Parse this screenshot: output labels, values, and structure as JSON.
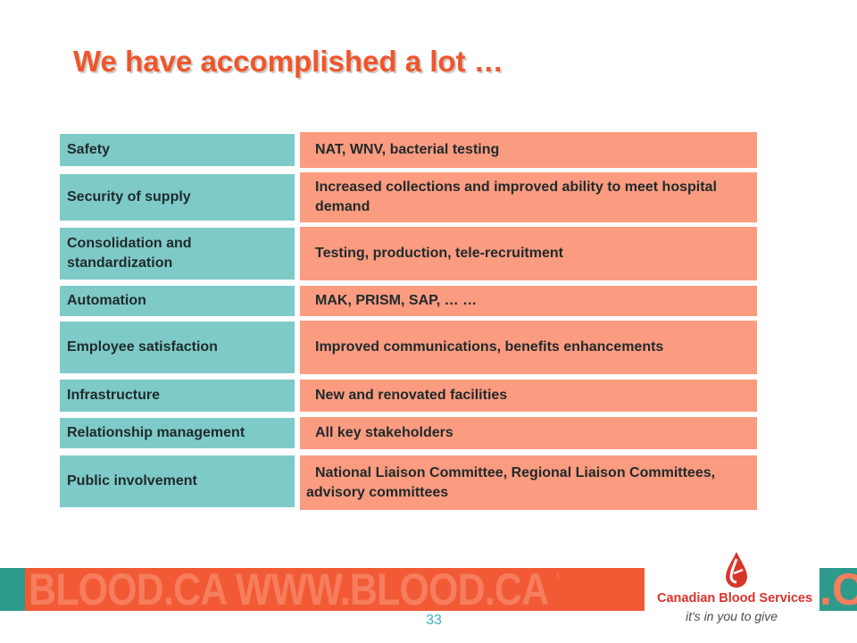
{
  "slide": {
    "title": "We have accomplished a lot …",
    "page_number": "33"
  },
  "rows": [
    {
      "label": "Safety",
      "value": "NAT, WNV, bacterial testing"
    },
    {
      "label": "Security of supply",
      "value": "Increased collections and improved ability to meet hospital demand"
    },
    {
      "label": "Consolidation and standardization",
      "value": "Testing, production, tele-recruitment"
    },
    {
      "label": "Automation",
      "value": "MAK, PRISM, SAP, … …"
    },
    {
      "label": "Employee satisfaction",
      "value": "Improved communications, benefits enhancements"
    },
    {
      "label": "Infrastructure",
      "value": "New and renovated facilities"
    },
    {
      "label": "Relationship management",
      "value": "All key stakeholders"
    },
    {
      "label": "Public involvement",
      "value": "National Liaison Committee, Regional Liaison Committees, advisory committees"
    }
  ],
  "footer": {
    "banner_text": "BLOOD.CA WWW.BLOOD.CA WWW",
    "banner_text_right": ".C",
    "logo_name": "Canadian Blood Services",
    "logo_tagline": "it's in you to give"
  },
  "colors": {
    "title": "#f0562a",
    "label_fill": "#7ecac9",
    "value_fill": "#fb9b80",
    "footer_bar": "#f15a35",
    "footer_accent": "#2e9a8b"
  }
}
